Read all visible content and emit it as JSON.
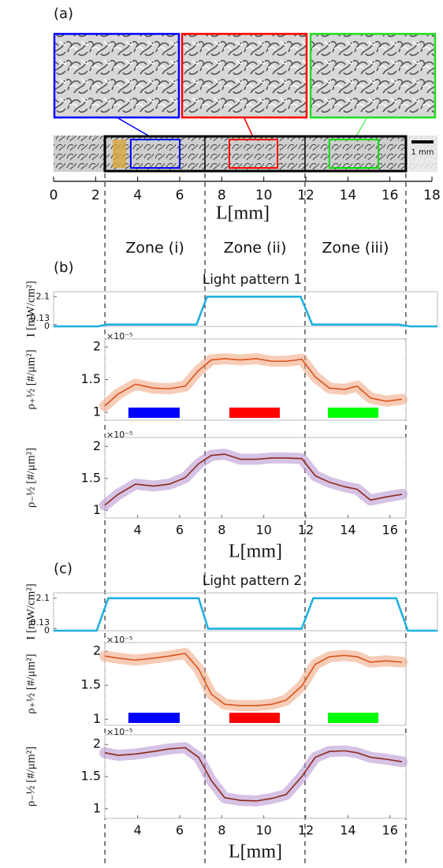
{
  "figure": {
    "panel_labels": [
      "(a)",
      "(b)",
      "(c)"
    ],
    "zone_labels": [
      "Zone (i)",
      "Zone (ii)",
      "Zone (iii)"
    ],
    "zone_boundaries": [
      2.44,
      7.2,
      11.96,
      16.76
    ],
    "scale_bar_label": "1 mm"
  },
  "chart_data": [
    {
      "type": "strip",
      "xlim": [
        0,
        18
      ],
      "xticks": [
        0,
        2,
        4,
        6,
        8,
        10,
        12,
        14,
        16,
        18
      ],
      "xlabel": "L[mm]",
      "regions": [
        {
          "color": "#d9a73f",
          "filled": true,
          "x": [
            2.81,
            3.45
          ]
        },
        {
          "color": "#0000ff",
          "filled": false,
          "x": [
            3.67,
            6.0
          ]
        },
        {
          "color": "#ff0000",
          "filled": false,
          "x": [
            8.36,
            10.65
          ]
        },
        {
          "color": "#00dd00",
          "filled": false,
          "x": [
            13.12,
            15.45
          ]
        }
      ]
    },
    {
      "type": "line",
      "title": "Light pattern 1",
      "ylabel": "I [mW/cm²]",
      "x": [
        0,
        2.1,
        2.55,
        6.8,
        7.3,
        11.75,
        12.3,
        16.4,
        16.95,
        18.26
      ],
      "series": [
        {
          "color": "#1fb0e0",
          "values": [
            0,
            0,
            0.13,
            0.13,
            2.1,
            2.1,
            0.13,
            0.13,
            0,
            0
          ]
        }
      ],
      "xlim": [
        0,
        18.26
      ],
      "ylim": [
        0,
        2.45
      ],
      "yticks": [
        0,
        0.13,
        2.1
      ]
    },
    {
      "type": "line",
      "ylabel": "ρ₊½ [#/μm²]",
      "scale_label": "×10⁻⁵",
      "x": [
        2.44,
        3.07,
        3.9,
        4.76,
        5.51,
        6.26,
        6.9,
        7.5,
        8.14,
        8.89,
        9.64,
        10.39,
        11.06,
        11.81,
        12.45,
        13.12,
        13.84,
        14.44,
        15.07,
        15.82,
        16.57
      ],
      "series": [
        {
          "color": "#d9541e",
          "band_color": "#f0a27c",
          "values": [
            1.1,
            1.28,
            1.43,
            1.37,
            1.36,
            1.4,
            1.64,
            1.8,
            1.82,
            1.8,
            1.82,
            1.78,
            1.78,
            1.81,
            1.54,
            1.37,
            1.35,
            1.4,
            1.22,
            1.17,
            1.2
          ]
        }
      ],
      "xlim": [
        2.44,
        16.76
      ],
      "ylim": [
        0.88,
        2.12
      ],
      "yticks": [
        1,
        1.5,
        2
      ],
      "highlights": [
        {
          "color": "#0000ff",
          "x": [
            3.56,
            6.0
          ]
        },
        {
          "color": "#ff0000",
          "x": [
            8.36,
            10.76
          ]
        },
        {
          "color": "#00ff00",
          "x": [
            13.05,
            15.45
          ]
        }
      ]
    },
    {
      "type": "line",
      "ylabel": "ρ₋½ [#/μm²]",
      "scale_label": "×10⁻⁵",
      "xlabel": "L[mm]",
      "x": [
        2.44,
        3.07,
        3.9,
        4.76,
        5.51,
        6.26,
        6.9,
        7.5,
        8.14,
        8.89,
        9.64,
        10.39,
        11.06,
        11.81,
        12.45,
        13.12,
        13.84,
        14.44,
        15.07,
        15.82,
        16.57
      ],
      "series": [
        {
          "color": "#8b2a1a",
          "band_color": "#b48fd0",
          "values": [
            1.08,
            1.25,
            1.41,
            1.38,
            1.41,
            1.51,
            1.73,
            1.86,
            1.88,
            1.8,
            1.8,
            1.82,
            1.82,
            1.81,
            1.54,
            1.44,
            1.37,
            1.33,
            1.16,
            1.21,
            1.25
          ]
        }
      ],
      "xlim": [
        2.44,
        16.76
      ],
      "ylim": [
        0.88,
        2.14
      ],
      "yticks": [
        1,
        1.5,
        2
      ],
      "xticks": [
        4,
        6,
        8,
        10,
        12,
        14,
        16
      ]
    },
    {
      "type": "line",
      "title": "Light pattern 2",
      "ylabel": "I [mW/cm²]",
      "x": [
        0,
        2.05,
        2.6,
        6.9,
        7.35,
        11.8,
        12.35,
        16.3,
        16.85,
        18.26
      ],
      "series": [
        {
          "color": "#1fb0e0",
          "values": [
            0,
            0,
            2.1,
            2.1,
            0.13,
            0.13,
            2.1,
            2.1,
            0,
            0
          ]
        }
      ],
      "xlim": [
        0,
        18.26
      ],
      "ylim": [
        0,
        2.45
      ],
      "yticks": [
        0,
        0.13,
        2.1
      ]
    },
    {
      "type": "line",
      "ylabel": "ρ₊½ [#/μm²]",
      "scale_label": "×10⁻⁵",
      "x": [
        2.44,
        3.07,
        3.9,
        4.76,
        5.51,
        6.26,
        6.9,
        7.5,
        8.14,
        8.89,
        9.64,
        10.39,
        11.06,
        11.81,
        12.45,
        13.12,
        13.84,
        14.44,
        15.07,
        15.82,
        16.57
      ],
      "series": [
        {
          "color": "#d9541e",
          "band_color": "#f0a27c",
          "values": [
            1.93,
            1.9,
            1.87,
            1.9,
            1.93,
            1.97,
            1.74,
            1.37,
            1.22,
            1.2,
            1.2,
            1.22,
            1.28,
            1.49,
            1.81,
            1.92,
            1.94,
            1.92,
            1.84,
            1.86,
            1.84
          ]
        }
      ],
      "xlim": [
        2.44,
        16.76
      ],
      "ylim": [
        0.91,
        2.13
      ],
      "yticks": [
        1,
        1.5,
        2
      ],
      "highlights": [
        {
          "color": "#0000ff",
          "x": [
            3.56,
            6.0
          ]
        },
        {
          "color": "#ff0000",
          "x": [
            8.36,
            10.76
          ]
        },
        {
          "color": "#00ff00",
          "x": [
            13.05,
            15.45
          ]
        }
      ]
    },
    {
      "type": "line",
      "ylabel": "ρ₋½ [#/μm²]",
      "scale_label": "×10⁻⁵",
      "xlabel": "L[mm]",
      "x": [
        2.44,
        3.07,
        3.9,
        4.76,
        5.51,
        6.26,
        6.9,
        7.5,
        8.14,
        8.89,
        9.64,
        10.39,
        11.06,
        11.81,
        12.45,
        13.12,
        13.84,
        14.44,
        15.07,
        15.82,
        16.57
      ],
      "series": [
        {
          "color": "#8b2a1a",
          "band_color": "#b48fd0",
          "values": [
            1.87,
            1.83,
            1.85,
            1.89,
            1.93,
            1.95,
            1.8,
            1.44,
            1.17,
            1.13,
            1.12,
            1.16,
            1.22,
            1.5,
            1.8,
            1.89,
            1.9,
            1.87,
            1.8,
            1.77,
            1.73
          ]
        }
      ],
      "xlim": [
        2.44,
        16.76
      ],
      "ylim": [
        0.85,
        2.15
      ],
      "yticks": [
        1,
        1.5,
        2
      ],
      "xticks": [
        4,
        6,
        8,
        10,
        12,
        14,
        16
      ]
    }
  ]
}
